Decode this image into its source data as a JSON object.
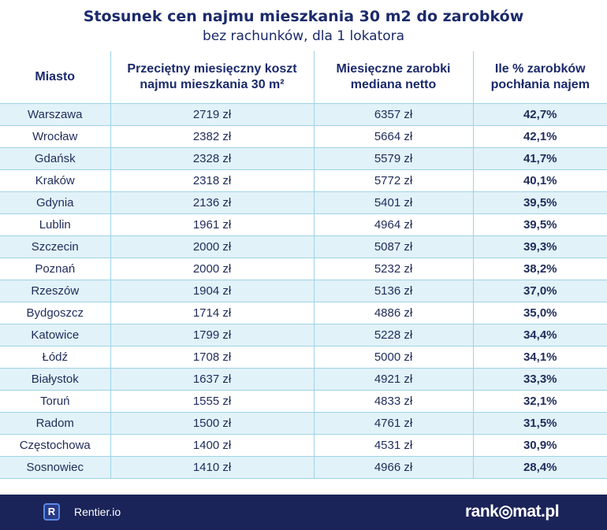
{
  "chart_data": {
    "type": "table",
    "title": "Stosunek cen najmu mieszkania 30 m2 do zarobków",
    "subtitle": "bez rachunków, dla 1 lokatora",
    "columns": [
      "Miasto",
      "Przeciętny miesięczny koszt najmu mieszkania 30 m²",
      "Miesięczne zarobki mediana netto",
      "Ile % zarobków pochłania najem"
    ],
    "rows": [
      {
        "city": "Warszawa",
        "rent": "2719 zł",
        "salary": "6357 zł",
        "share": "42,7%"
      },
      {
        "city": "Wrocław",
        "rent": "2382 zł",
        "salary": "5664 zł",
        "share": "42,1%"
      },
      {
        "city": "Gdańsk",
        "rent": "2328 zł",
        "salary": "5579 zł",
        "share": "41,7%"
      },
      {
        "city": "Kraków",
        "rent": "2318 zł",
        "salary": "5772 zł",
        "share": "40,1%"
      },
      {
        "city": "Gdynia",
        "rent": "2136 zł",
        "salary": "5401 zł",
        "share": "39,5%"
      },
      {
        "city": "Lublin",
        "rent": "1961 zł",
        "salary": "4964 zł",
        "share": "39,5%"
      },
      {
        "city": "Szczecin",
        "rent": "2000 zł",
        "salary": "5087 zł",
        "share": "39,3%"
      },
      {
        "city": "Poznań",
        "rent": "2000 zł",
        "salary": "5232 zł",
        "share": "38,2%"
      },
      {
        "city": "Rzeszów",
        "rent": "1904 zł",
        "salary": "5136 zł",
        "share": "37,0%"
      },
      {
        "city": "Bydgoszcz",
        "rent": "1714 zł",
        "salary": "4886 zł",
        "share": "35,0%"
      },
      {
        "city": "Katowice",
        "rent": "1799 zł",
        "salary": "5228 zł",
        "share": "34,4%"
      },
      {
        "city": "Łódź",
        "rent": "1708 zł",
        "salary": "5000 zł",
        "share": "34,1%"
      },
      {
        "city": "Białystok",
        "rent": "1637 zł",
        "salary": "4921 zł",
        "share": "33,3%"
      },
      {
        "city": "Toruń",
        "rent": "1555 zł",
        "salary": "4833 zł",
        "share": "32,1%"
      },
      {
        "city": "Radom",
        "rent": "1500 zł",
        "salary": "4761 zł",
        "share": "31,5%"
      },
      {
        "city": "Częstochowa",
        "rent": "1400 zł",
        "salary": "4531 zł",
        "share": "30,9%"
      },
      {
        "city": "Sosnowiec",
        "rent": "1410 zł",
        "salary": "4966 zł",
        "share": "28,4%"
      }
    ]
  },
  "footer": {
    "left_logo_letter": "R",
    "left_brand": "Rentier.io",
    "right_brand": "rank◎mat.pl"
  },
  "colors": {
    "title": "#1b2a6b",
    "row_alt": "#e2f2f9",
    "grid": "#9ed3e6",
    "footer_bg": "#1b2459"
  }
}
